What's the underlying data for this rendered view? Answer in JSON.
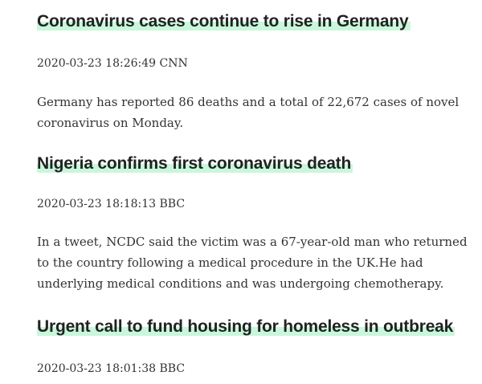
{
  "articles": [
    {
      "headline": "Coronavirus cases continue to rise in Germany",
      "meta": "2020-03-23 18:26:49 CNN",
      "summary": "Germany has reported 86 deaths and a total of 22,672 cases of novel coronavirus on Monday."
    },
    {
      "headline": "Nigeria confirms first coronavirus death",
      "meta": "2020-03-23 18:18:13 BBC",
      "summary": "In a tweet, NCDC said the victim was a 67-year-old man who returned to the country following a medical procedure in the UK.He had underlying medical conditions and was undergoing chemotherapy."
    },
    {
      "headline": "Urgent call to fund housing for homeless in outbreak",
      "meta": "2020-03-23 18:01:38 BBC",
      "summary": ""
    }
  ],
  "colors": {
    "highlight": "#c8f7dc",
    "headline_text": "#222222",
    "body_text": "#333333"
  }
}
